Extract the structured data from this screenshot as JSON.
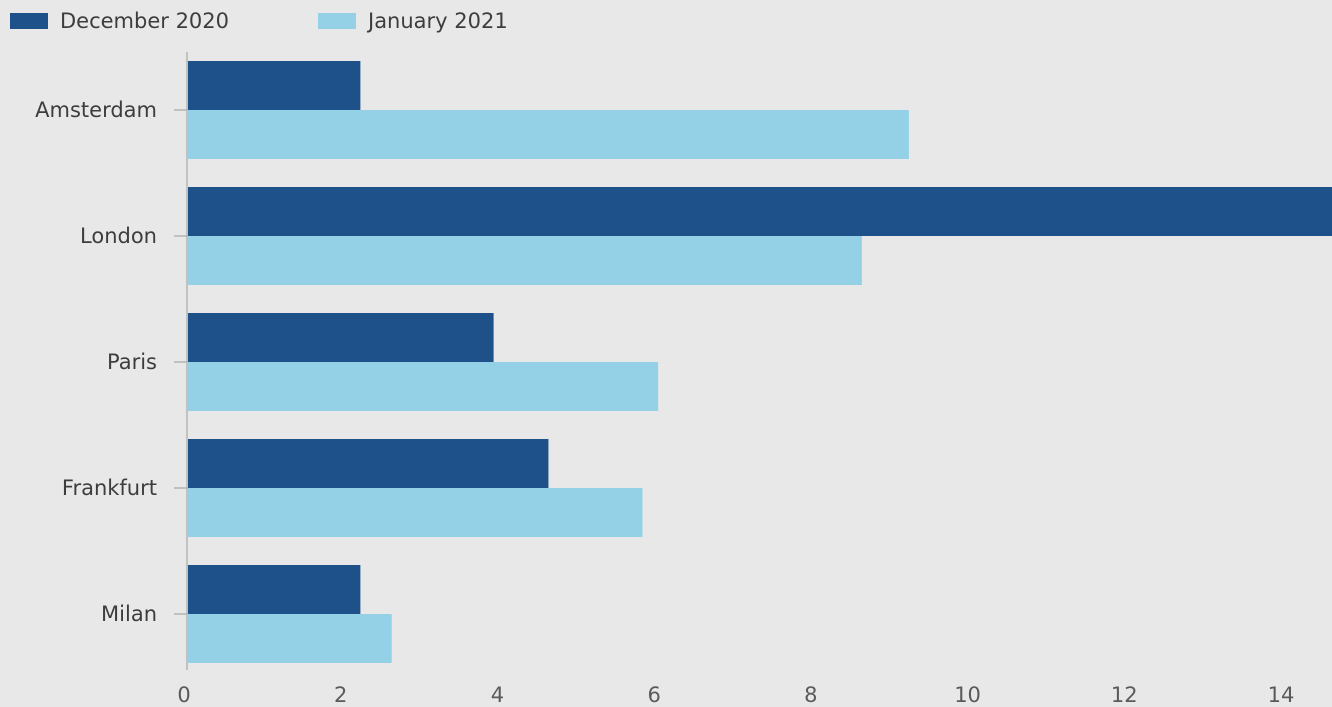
{
  "chart_data": {
    "type": "bar",
    "orientation": "horizontal",
    "categories": [
      "Amsterdam",
      "London",
      "Paris",
      "Frankfurt",
      "Milan"
    ],
    "series": [
      {
        "name": "December 2020",
        "color": "#1e5189",
        "values": [
          2.2,
          14.6,
          3.9,
          4.6,
          2.2
        ]
      },
      {
        "name": "January 2021",
        "color": "#95d1e6",
        "values": [
          9.2,
          8.6,
          6.0,
          5.8,
          2.6
        ]
      }
    ],
    "xlim": [
      0,
      14.6
    ],
    "xticks": [
      0,
      2,
      4,
      6,
      8,
      10,
      12,
      14
    ],
    "legend_position": "top-left",
    "grid": false
  }
}
